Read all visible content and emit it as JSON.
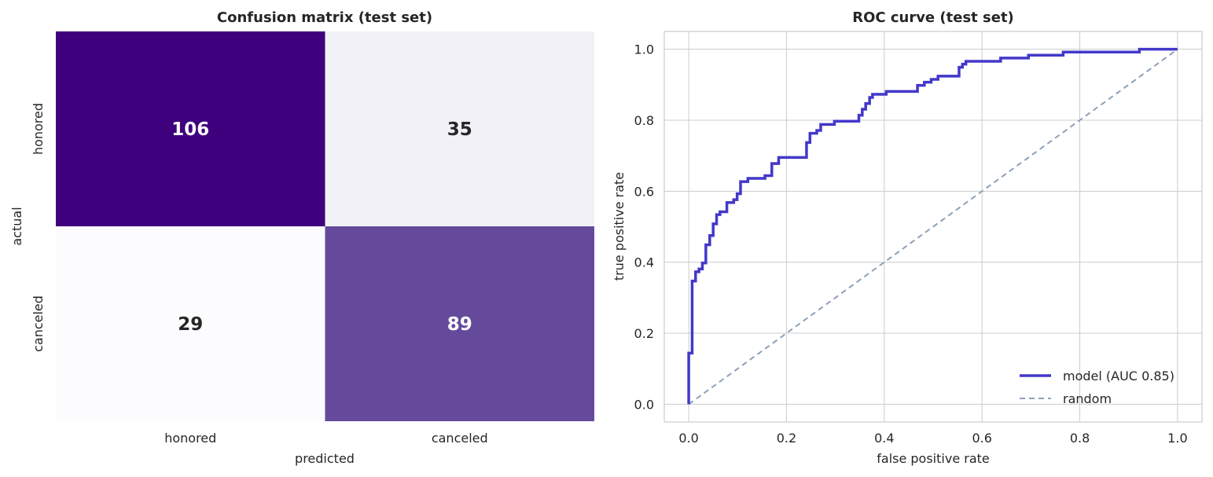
{
  "colors": {
    "model_line": "#4338ca",
    "random_line": "#8da0b8",
    "grid": "#cccccc",
    "frame": "#cccccc",
    "text": "#262626"
  },
  "chart_data": [
    {
      "type": "heatmap",
      "title": "Confusion matrix (test set)",
      "xlabel": "predicted",
      "ylabel": "actual",
      "x_categories": [
        "honored",
        "canceled"
      ],
      "y_categories": [
        "honored",
        "canceled"
      ],
      "values": [
        [
          106,
          35
        ],
        [
          29,
          89
        ]
      ],
      "cell_colors": [
        [
          "#3f007d",
          "#f2f1f7"
        ],
        [
          "#fcfbfd",
          "#654a9c"
        ]
      ],
      "label_colors": [
        [
          "#ffffff",
          "#262626"
        ],
        [
          "#262626",
          "#ffffff"
        ]
      ],
      "grid": false
    },
    {
      "type": "line",
      "title": "ROC curve (test set)",
      "xlabel": "false positive rate",
      "ylabel": "true positive rate",
      "xlim": [
        -0.05,
        1.05
      ],
      "ylim": [
        -0.05,
        1.05
      ],
      "xticks": [
        0.0,
        0.2,
        0.4,
        0.6,
        0.8,
        1.0
      ],
      "xtick_labels": [
        "0.0",
        "0.2",
        "0.4",
        "0.6",
        "0.8",
        "1.0"
      ],
      "yticks": [
        0.0,
        0.2,
        0.4,
        0.6,
        0.8,
        1.0
      ],
      "ytick_labels": [
        "0.0",
        "0.2",
        "0.4",
        "0.6",
        "0.8",
        "1.0"
      ],
      "grid": true,
      "legend_position": "lower-right",
      "series": [
        {
          "name": "model (AUC 0.85)",
          "style": "solid",
          "x": [
            0.0,
            0.0,
            0.007,
            0.007,
            0.014,
            0.014,
            0.021,
            0.021,
            0.028,
            0.028,
            0.035,
            0.035,
            0.043,
            0.043,
            0.05,
            0.05,
            0.057,
            0.057,
            0.064,
            0.064,
            0.078,
            0.078,
            0.092,
            0.092,
            0.099,
            0.099,
            0.106,
            0.106,
            0.113,
            0.113,
            0.121,
            0.121,
            0.156,
            0.156,
            0.17,
            0.17,
            0.184,
            0.184,
            0.241,
            0.241,
            0.248,
            0.248,
            0.262,
            0.262,
            0.27,
            0.27,
            0.298,
            0.298,
            0.348,
            0.348,
            0.355,
            0.355,
            0.362,
            0.362,
            0.37,
            0.37,
            0.376,
            0.376,
            0.39,
            0.39,
            0.404,
            0.404,
            0.418,
            0.418,
            0.468,
            0.468,
            0.482,
            0.482,
            0.496,
            0.496,
            0.51,
            0.51,
            0.553,
            0.553,
            0.56,
            0.56,
            0.567,
            0.567,
            0.638,
            0.638,
            0.695,
            0.695,
            0.766,
            0.766,
            0.922,
            0.922,
            1.0
          ],
          "y": [
            0.0,
            0.144,
            0.144,
            0.347,
            0.347,
            0.373,
            0.373,
            0.381,
            0.381,
            0.398,
            0.398,
            0.449,
            0.449,
            0.475,
            0.475,
            0.508,
            0.508,
            0.534,
            0.534,
            0.542,
            0.542,
            0.568,
            0.568,
            0.576,
            0.576,
            0.593,
            0.593,
            0.627,
            0.627,
            0.627,
            0.627,
            0.636,
            0.636,
            0.644,
            0.644,
            0.678,
            0.678,
            0.695,
            0.695,
            0.737,
            0.737,
            0.763,
            0.763,
            0.771,
            0.771,
            0.788,
            0.788,
            0.797,
            0.797,
            0.814,
            0.814,
            0.831,
            0.831,
            0.847,
            0.847,
            0.864,
            0.864,
            0.873,
            0.873,
            0.873,
            0.873,
            0.881,
            0.881,
            0.881,
            0.881,
            0.898,
            0.898,
            0.907,
            0.907,
            0.915,
            0.915,
            0.924,
            0.924,
            0.949,
            0.949,
            0.958,
            0.958,
            0.966,
            0.966,
            0.975,
            0.975,
            0.983,
            0.983,
            0.992,
            0.992,
            1.0,
            1.0
          ]
        },
        {
          "name": "random",
          "style": "dashed",
          "x": [
            0.0,
            1.0
          ],
          "y": [
            0.0,
            1.0
          ]
        }
      ]
    }
  ]
}
